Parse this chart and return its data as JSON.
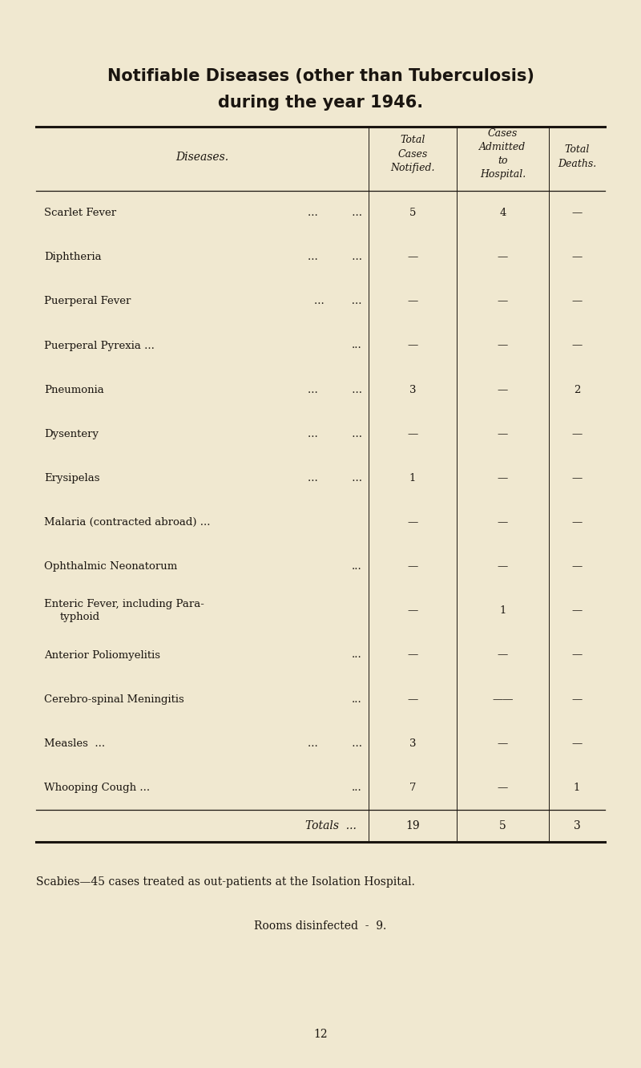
{
  "title_line1": "Notifiable Diseases (other than Tuberculosis)",
  "title_line2": "during the year 1946.",
  "bg_color": "#f0e8d0",
  "text_color": "#1a1510",
  "rows": [
    {
      "disease": "Scarlet Fever",
      "dots": "...          ...",
      "col1": "5",
      "col2": "4",
      "col3": "—"
    },
    {
      "disease": "Diphtheria",
      "dots": "...          ...",
      "col1": "—",
      "col2": "—",
      "col3": "—"
    },
    {
      "disease": "Puerperal Fever",
      "dots": "...        ...",
      "col1": "—",
      "col2": "—",
      "col3": "—"
    },
    {
      "disease": "Puerperal Pyrexia ...",
      "dots": "         ...",
      "col1": "—",
      "col2": "—",
      "col3": "—"
    },
    {
      "disease": "Pneumonia",
      "dots": "...          ...",
      "col1": "3",
      "col2": "—",
      "col3": "2"
    },
    {
      "disease": "Dysentery",
      "dots": "...          ...",
      "col1": "—",
      "col2": "—",
      "col3": "—"
    },
    {
      "disease": "Erysipelas",
      "dots": "...          ...",
      "col1": "1",
      "col2": "—",
      "col3": "—"
    },
    {
      "disease": "Malaria (contracted abroad) ...",
      "dots": "",
      "col1": "—",
      "col2": "—",
      "col3": "—"
    },
    {
      "disease": "Ophthalmic Neonatorum",
      "dots": "  ...",
      "col1": "—",
      "col2": "—",
      "col3": "—"
    },
    {
      "disease": "Enteric Fever, including Para-",
      "disease2": "    typhoid",
      "dots": "",
      "col1": "—",
      "col2": "1",
      "col3": "—"
    },
    {
      "disease": "Anterior Poliomyelitis",
      "dots": "      ...",
      "col1": "—",
      "col2": "—",
      "col3": "—"
    },
    {
      "disease": "Cerebro-spinal Meningitis",
      "dots": "  ...",
      "col1": "—",
      "col2": "——",
      "col3": "—"
    },
    {
      "disease": "Measles  ...",
      "dots": "   ...          ...",
      "col1": "3",
      "col2": "—",
      "col3": "—"
    },
    {
      "disease": "Whooping Cough ...",
      "dots": "     ...",
      "col1": "7",
      "col2": "—",
      "col3": "1"
    }
  ],
  "totals_label": "Totals  ...",
  "totals": [
    "19",
    "5",
    "3"
  ],
  "footnote1": "Scabies—45 cases treated as out-patients at the Isolation Hospital.",
  "footnote2": "Rooms disinfected  -  9.",
  "page_number": "12"
}
